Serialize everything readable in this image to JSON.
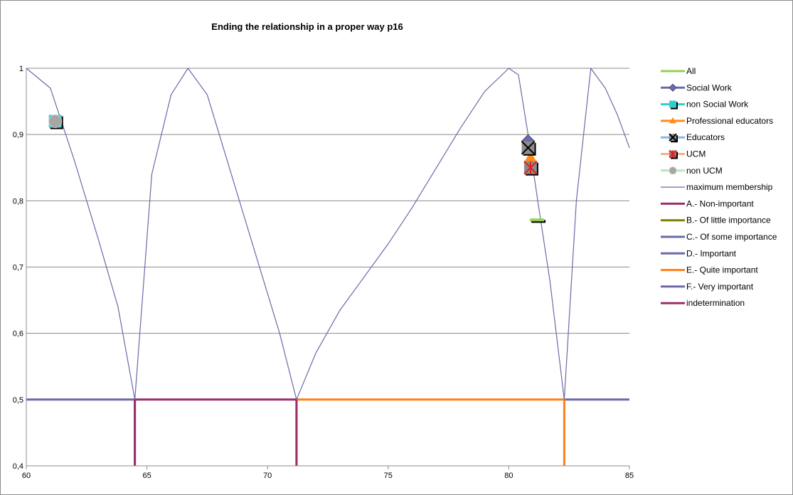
{
  "chart_data": {
    "type": "scatter",
    "title": "Ending the relationship in a proper way  p16",
    "xlabel": "",
    "ylabel": "",
    "xlim": [
      60,
      85
    ],
    "ylim": [
      0.4,
      1.0
    ],
    "x_ticks": [
      "60",
      "65",
      "70",
      "75",
      "80",
      "85"
    ],
    "y_ticks": [
      "0,4",
      "0,5",
      "0,6",
      "0,7",
      "0,8",
      "0,9",
      "1"
    ],
    "grid": "horizontal",
    "legend_position": "right",
    "series": [
      {
        "name": "All",
        "marker": "dash",
        "color": "#92d050",
        "points": [
          [
            81.2,
            0.77
          ]
        ]
      },
      {
        "name": "Social Work",
        "marker": "diamond",
        "color": "#6b6ba8",
        "points": [
          [
            80.8,
            0.89
          ]
        ]
      },
      {
        "name": "non Social Work",
        "marker": "square",
        "color": "#33cccc",
        "points": [
          [
            61.2,
            0.92
          ]
        ]
      },
      {
        "name": "Professional educators",
        "marker": "triangle",
        "color": "#ff8c1a",
        "points": [
          [
            80.9,
            0.865
          ]
        ]
      },
      {
        "name": "Educators",
        "marker": "x-square",
        "color": "#8db4e2",
        "points": [
          [
            80.8,
            0.88
          ]
        ]
      },
      {
        "name": "UCM",
        "marker": "star-square",
        "color": "#f4b183",
        "points": [
          [
            80.9,
            0.85
          ]
        ]
      },
      {
        "name": "non UCM",
        "marker": "circle",
        "color": "#b9e7b9",
        "points": [
          [
            61.2,
            0.92
          ]
        ]
      },
      {
        "name": "maximum membership",
        "marker": "line",
        "color": "#6a6aa8",
        "points": [
          [
            60,
            1.0
          ],
          [
            61,
            0.97
          ],
          [
            62,
            0.86
          ],
          [
            63,
            0.74
          ],
          [
            63.8,
            0.64
          ],
          [
            64.5,
            0.5
          ],
          [
            65.2,
            0.84
          ],
          [
            66,
            0.96
          ],
          [
            66.7,
            1.0
          ],
          [
            67.5,
            0.96
          ],
          [
            68.5,
            0.84
          ],
          [
            69.5,
            0.72
          ],
          [
            70.5,
            0.6
          ],
          [
            71.2,
            0.5
          ],
          [
            72,
            0.57
          ],
          [
            73,
            0.635
          ],
          [
            74,
            0.685
          ],
          [
            75,
            0.735
          ],
          [
            76,
            0.79
          ],
          [
            77,
            0.85
          ],
          [
            78,
            0.91
          ],
          [
            79,
            0.965
          ],
          [
            80,
            1.0
          ],
          [
            80.4,
            0.99
          ],
          [
            80.8,
            0.9
          ],
          [
            81.2,
            0.8
          ],
          [
            81.7,
            0.68
          ],
          [
            82.3,
            0.5
          ],
          [
            82.8,
            0.8
          ],
          [
            83.4,
            1.0
          ],
          [
            84,
            0.97
          ],
          [
            84.5,
            0.93
          ],
          [
            85,
            0.88
          ]
        ]
      },
      {
        "name": "A.- Non-important",
        "marker": "line",
        "color": "#9b2d6b",
        "points": []
      },
      {
        "name": "B.- Of little importance",
        "marker": "line",
        "color": "#7f7f00",
        "points": []
      },
      {
        "name": "C.- Of some importance",
        "marker": "line",
        "color": "#6a6aa8",
        "points": [
          [
            60,
            0.5
          ],
          [
            64.5,
            0.5
          ],
          [
            64.5,
            0.4
          ]
        ]
      },
      {
        "name": "D.- Important",
        "marker": "line",
        "color": "#6a6aa8",
        "points": [
          [
            82.3,
            0.5
          ],
          [
            85,
            0.5
          ]
        ]
      },
      {
        "name": "E.- Quite important",
        "marker": "line",
        "color": "#ff7f1a",
        "points": [
          [
            71.2,
            0.4
          ],
          [
            71.2,
            0.5
          ],
          [
            82.3,
            0.5
          ],
          [
            82.3,
            0.4
          ]
        ]
      },
      {
        "name": "F.- Very important",
        "marker": "line",
        "color": "#6a6aa8",
        "points": []
      },
      {
        "name": "indetermination",
        "marker": "line",
        "color": "#9b2d6b",
        "points": [
          [
            64.5,
            0.4
          ],
          [
            64.5,
            0.5
          ],
          [
            71.2,
            0.5
          ],
          [
            71.2,
            0.4
          ]
        ]
      }
    ]
  }
}
